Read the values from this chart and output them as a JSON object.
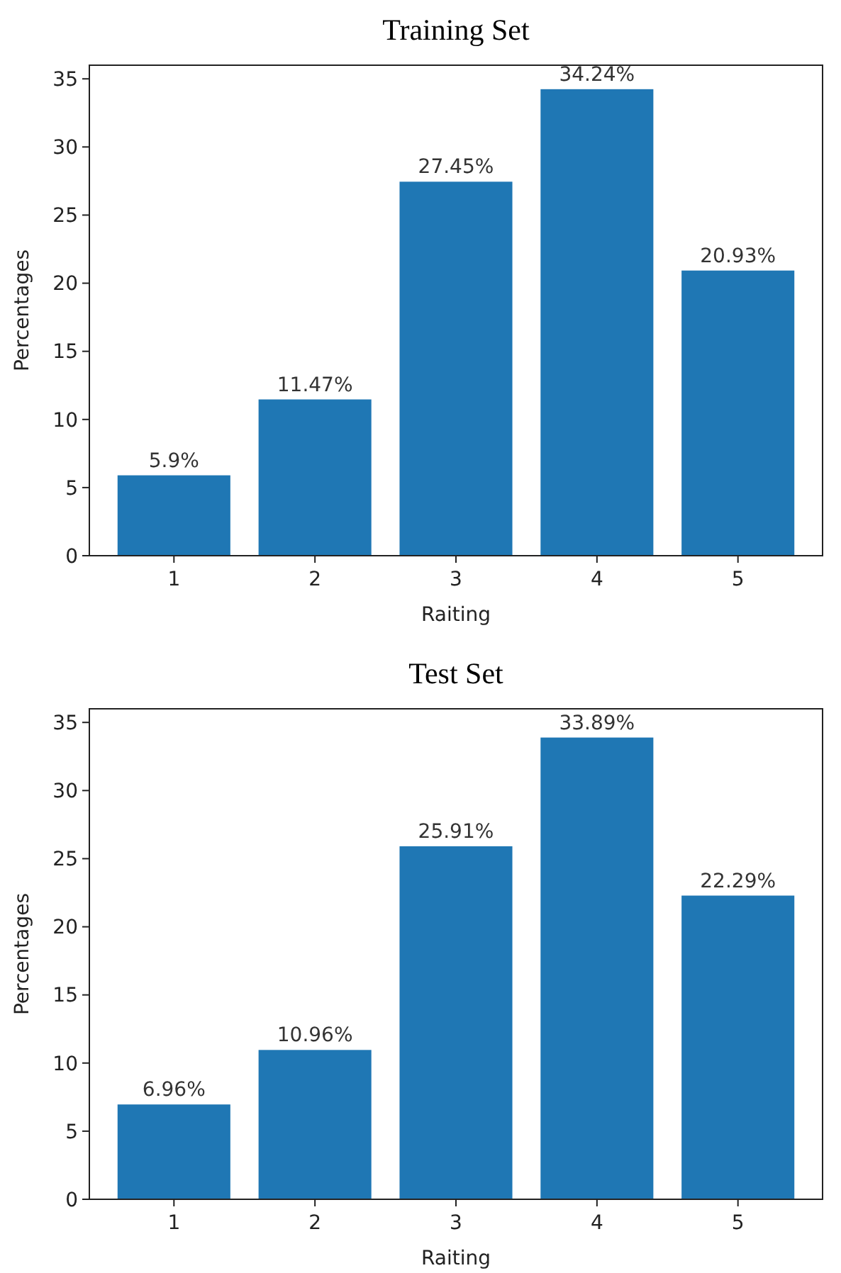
{
  "chart_data": [
    {
      "type": "bar",
      "title": "Training Set",
      "xlabel": "Raiting",
      "ylabel": "Percentages",
      "categories": [
        "1",
        "2",
        "3",
        "4",
        "5"
      ],
      "values": [
        5.9,
        11.47,
        27.45,
        34.24,
        20.93
      ],
      "value_labels": [
        "5.9%",
        "11.47%",
        "27.45%",
        "34.24%",
        "20.93%"
      ],
      "color": "#1f77b4",
      "ylim": [
        0,
        36
      ],
      "yticks": [
        0,
        5,
        10,
        15,
        20,
        25,
        30,
        35
      ]
    },
    {
      "type": "bar",
      "title": "Test Set",
      "xlabel": "Raiting",
      "ylabel": "Percentages",
      "categories": [
        "1",
        "2",
        "3",
        "4",
        "5"
      ],
      "values": [
        6.96,
        10.96,
        25.91,
        33.89,
        22.29
      ],
      "value_labels": [
        "6.96%",
        "10.96%",
        "25.91%",
        "33.89%",
        "22.29%"
      ],
      "color": "#1f77b4",
      "ylim": [
        0,
        36
      ],
      "yticks": [
        0,
        5,
        10,
        15,
        20,
        25,
        30,
        35
      ]
    }
  ]
}
